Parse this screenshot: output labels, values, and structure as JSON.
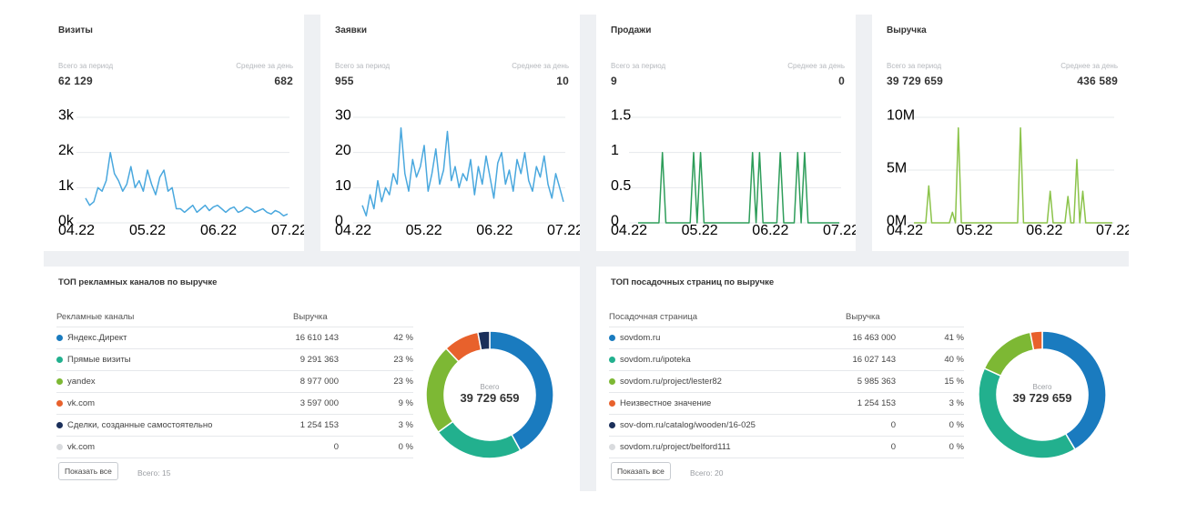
{
  "kpis": [
    {
      "title": "Визиты",
      "total_label": "Всего за период",
      "total": "62 129",
      "avg_label": "Среднее за день",
      "avg": "682"
    },
    {
      "title": "Заявки",
      "total_label": "Всего за период",
      "total": "955",
      "avg_label": "Среднее за день",
      "avg": "10"
    },
    {
      "title": "Продажи",
      "total_label": "Всего за период",
      "total": "9",
      "avg_label": "Среднее за день",
      "avg": "0"
    },
    {
      "title": "Выручка",
      "total_label": "Всего за период",
      "total": "39 729 659",
      "avg_label": "Среднее за день",
      "avg": "436 589"
    }
  ],
  "chart_data": [
    {
      "type": "line",
      "series": [
        {
          "values": [
            700,
            500,
            600,
            1000,
            900,
            1200,
            2000,
            1400,
            1200,
            900,
            1100,
            1600,
            1000,
            1200,
            900,
            1500,
            1100,
            800,
            1300,
            1500,
            900,
            1000,
            400,
            400,
            300,
            400,
            500,
            300,
            400,
            500,
            350,
            450,
            500,
            400,
            300,
            400,
            450,
            300,
            350,
            450,
            400,
            300,
            350,
            400,
            300,
            250,
            350,
            300,
            200,
            250
          ]
        }
      ],
      "x_ticks": [
        "04.22",
        "05.22",
        "06.22",
        "07.22"
      ],
      "y_ticks": [
        "0k",
        "1k",
        "2k",
        "3k"
      ],
      "ylim": [
        0,
        3000
      ],
      "color": "#4aa8de"
    },
    {
      "type": "line",
      "series": [
        {
          "values": [
            5,
            2,
            8,
            4,
            12,
            6,
            10,
            8,
            14,
            11,
            27,
            14,
            9,
            18,
            13,
            16,
            22,
            9,
            14,
            21,
            11,
            15,
            26,
            12,
            16,
            10,
            14,
            12,
            18,
            8,
            16,
            11,
            19,
            13,
            7,
            17,
            20,
            11,
            15,
            9,
            18,
            14,
            20,
            12,
            9,
            16,
            13,
            19,
            11,
            7,
            14,
            10,
            6
          ]
        }
      ],
      "x_ticks": [
        "04.22",
        "05.22",
        "06.22",
        "07.22"
      ],
      "y_ticks": [
        "0",
        "10",
        "20",
        "30"
      ],
      "ylim": [
        0,
        30
      ],
      "color": "#4aa8de"
    },
    {
      "type": "line",
      "series": [
        {
          "values": [
            0,
            0,
            0,
            0,
            0,
            0,
            0,
            1,
            0,
            0,
            0,
            0,
            0,
            0,
            0,
            0,
            1,
            0,
            1,
            0,
            0,
            0,
            0,
            0,
            0,
            0,
            0,
            0,
            0,
            0,
            0,
            0,
            0,
            1,
            0,
            1,
            0,
            0,
            0,
            0,
            0,
            1,
            0,
            0,
            0,
            0,
            1,
            0,
            1,
            0,
            0,
            0,
            0,
            0,
            0,
            0,
            0,
            0,
            0
          ]
        }
      ],
      "x_ticks": [
        "04.22",
        "05.22",
        "06.22",
        "07.22"
      ],
      "y_ticks": [
        "0",
        "0.5",
        "1",
        "1.5"
      ],
      "ylim": [
        0,
        1.5
      ],
      "color": "#2e9d5a"
    },
    {
      "type": "line",
      "series": [
        {
          "values": [
            0,
            0,
            0,
            0,
            0,
            3500000,
            0,
            0,
            0,
            0,
            0,
            0,
            0,
            1000000,
            0,
            9000000,
            0,
            0,
            0,
            0,
            0,
            0,
            0,
            0,
            0,
            0,
            0,
            0,
            0,
            0,
            0,
            0,
            0,
            0,
            0,
            0,
            9000000,
            0,
            0,
            0,
            0,
            0,
            0,
            0,
            0,
            0,
            3000000,
            0,
            0,
            0,
            0,
            0,
            2500000,
            0,
            0,
            6000000,
            0,
            3000000,
            0,
            0,
            0,
            0,
            0,
            0,
            0,
            0,
            0,
            0
          ]
        }
      ],
      "x_ticks": [
        "04.22",
        "05.22",
        "06.22",
        "07.22"
      ],
      "y_ticks": [
        "0M",
        "5M",
        "10M"
      ],
      "ylim": [
        0,
        10000000
      ],
      "color": "#8bc34a"
    }
  ],
  "top_channels": {
    "title": "ТОП рекламных каналов по выручке",
    "col_name": "Рекламные каналы",
    "col_value": "Выручка",
    "rows": [
      {
        "name": "Яндекс.Директ",
        "value": "16 610 143",
        "pct": "42 %",
        "color": "#1a7bbf"
      },
      {
        "name": "Прямые визиты",
        "value": "9 291 363",
        "pct": "23 %",
        "color": "#22b08e"
      },
      {
        "name": "yandex",
        "value": "8 977 000",
        "pct": "23 %",
        "color": "#7db834"
      },
      {
        "name": "vk.com",
        "value": "3 597 000",
        "pct": "9 %",
        "color": "#e8612c"
      },
      {
        "name": "Сделки, созданные самостоятельно",
        "value": "1 254 153",
        "pct": "3 %",
        "color": "#1b2f5a"
      },
      {
        "name": "vk.com",
        "value": "0",
        "pct": "0 %",
        "color": "#d9dbde"
      }
    ],
    "show_all": "Показать все",
    "total_note": "Всего: 15",
    "donut": {
      "label": "Всего",
      "total": "39 729 659",
      "shares": [
        42,
        23,
        23,
        9,
        3,
        0
      ]
    }
  },
  "top_pages": {
    "title": "ТОП посадочных страниц по выручке",
    "col_name": "Посадочная страница",
    "col_value": "Выручка",
    "rows": [
      {
        "name": "sovdom.ru",
        "value": "16 463 000",
        "pct": "41 %",
        "color": "#1a7bbf"
      },
      {
        "name": "sovdom.ru/ipoteka",
        "value": "16 027 143",
        "pct": "40 %",
        "color": "#22b08e"
      },
      {
        "name": "sovdom.ru/project/lester82",
        "value": "5 985 363",
        "pct": "15 %",
        "color": "#7db834"
      },
      {
        "name": "Неизвестное значение",
        "value": "1 254 153",
        "pct": "3 %",
        "color": "#e8612c"
      },
      {
        "name": "sov-dom.ru/catalog/wooden/16-025",
        "value": "0",
        "pct": "0 %",
        "color": "#1b2f5a"
      },
      {
        "name": "sovdom.ru/project/belford111",
        "value": "0",
        "pct": "0 %",
        "color": "#d9dbde"
      }
    ],
    "show_all": "Показать все",
    "total_note": "Всего: 20",
    "donut": {
      "label": "Всего",
      "total": "39 729 659",
      "shares": [
        41,
        40,
        15,
        3,
        0,
        0
      ]
    }
  }
}
